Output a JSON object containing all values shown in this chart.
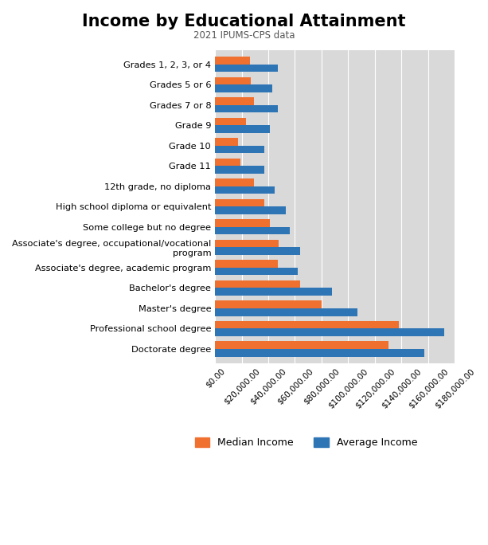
{
  "title": "Income by Educational Attainment",
  "subtitle": "2021 IPUMS-CPS data",
  "categories": [
    "Doctorate degree",
    "Professional school degree",
    "Master's degree",
    "Bachelor's degree",
    "Associate's degree, academic program",
    "Associate's degree, occupational/vocational\nprogram",
    "Some college but no degree",
    "High school diploma or equivalent",
    "12th grade, no diploma",
    "Grade 11",
    "Grade 10",
    "Grade 9",
    "Grades 7 or 8",
    "Grades 5 or 6",
    "Grades 1, 2, 3, or 4"
  ],
  "median_income": [
    130000,
    138000,
    80000,
    64000,
    47000,
    48000,
    41000,
    37000,
    29000,
    19000,
    17000,
    23000,
    29000,
    27000,
    26000
  ],
  "average_income": [
    157000,
    172000,
    107000,
    88000,
    62000,
    64000,
    56000,
    53000,
    45000,
    37000,
    37000,
    41000,
    47000,
    43000,
    47000
  ],
  "median_color": "#F07030",
  "average_color": "#2E75B6",
  "plot_bg_color": "#D9D9D9",
  "xlim": [
    0,
    180000
  ],
  "xticks": [
    0,
    20000,
    40000,
    60000,
    80000,
    100000,
    120000,
    140000,
    160000,
    180000
  ]
}
